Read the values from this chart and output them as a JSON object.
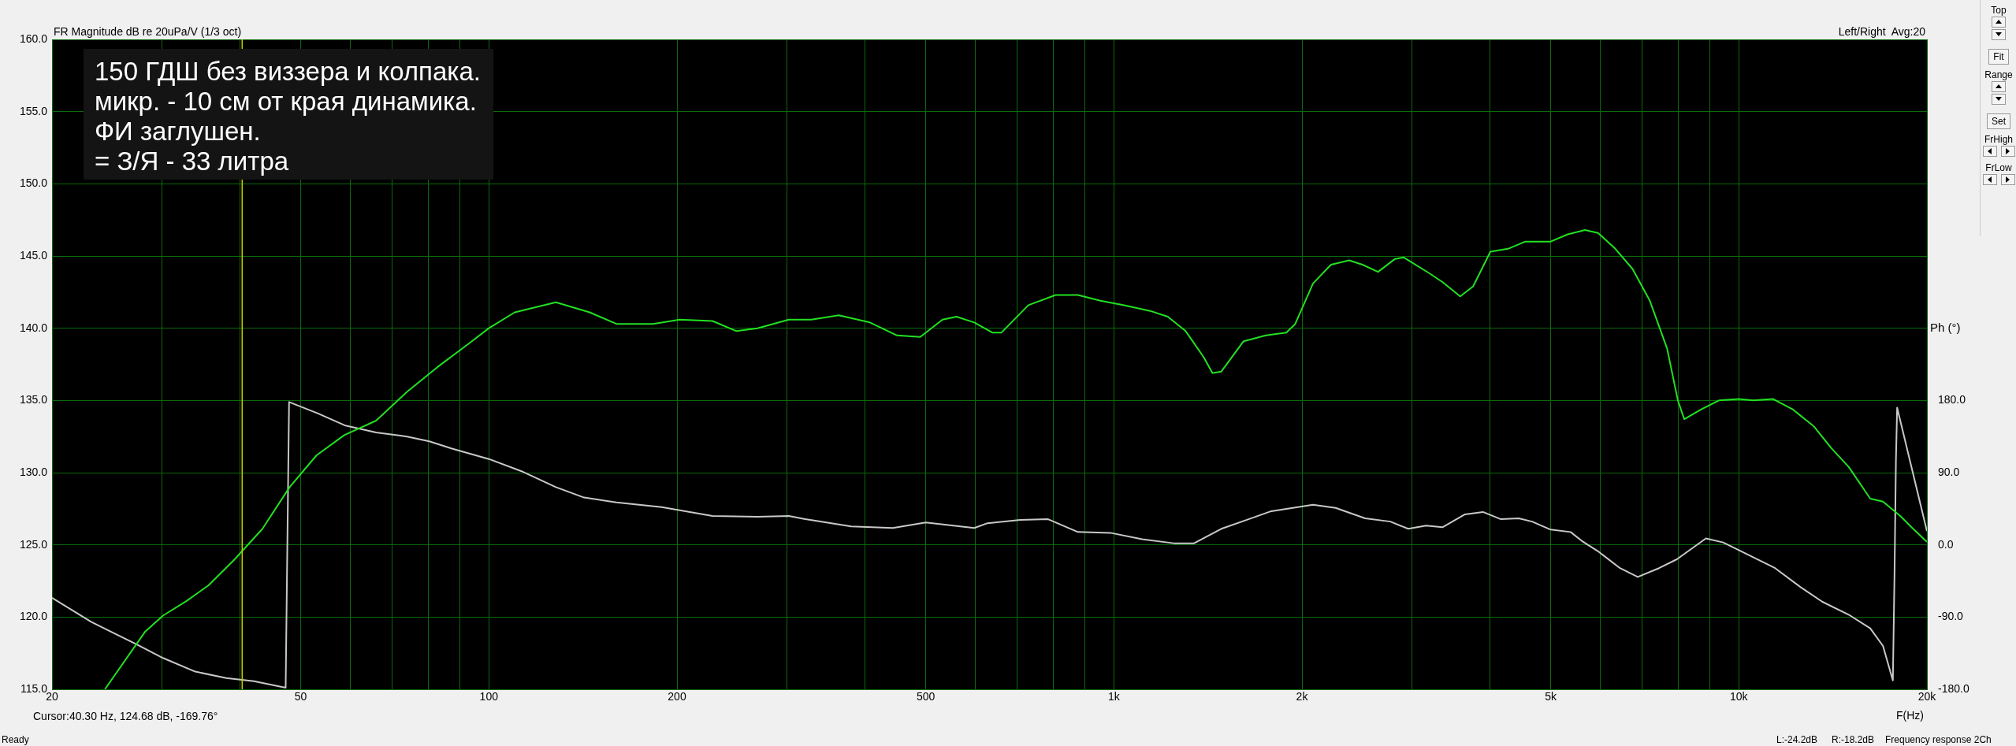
{
  "chart_data": {
    "type": "line",
    "title": "FR Magnitude dB re 20uPa/V (1/3 oct)",
    "xlabel": "F(Hz)",
    "y2label": "Ph (°)",
    "annotations": [
      "150 ГДШ без виззера и колпака.\nмикр. - 10 см от края динамика.\nФИ заглушен.\n= З/Я - 33 литра",
      "Left/Right  Avg:20",
      "Cursor:40.30 Hz, 124.68 dB, -169.76°",
      "Ready",
      "L:-24.2dB",
      "R:-18.2dB",
      "Frequency response 2Ch",
      "Top",
      "Fit",
      "Range",
      "Set",
      "FrHigh",
      "FrLow"
    ],
    "log": "x",
    "grid": true,
    "legend": false,
    "marker": "none",
    "line_style": "solid",
    "xlim": [
      20,
      20000
    ],
    "xticks": [
      20,
      {
        "value": 30,
        "label": null
      },
      {
        "value": 40,
        "label": null
      },
      50,
      {
        "value": 60,
        "label": null
      },
      {
        "value": 70,
        "label": null
      },
      {
        "value": 80,
        "label": null
      },
      {
        "value": 90,
        "label": null
      },
      100,
      200,
      {
        "value": 300,
        "label": null
      },
      {
        "value": 400,
        "label": null
      },
      500,
      {
        "value": 600,
        "label": null
      },
      {
        "value": 700,
        "label": null
      },
      {
        "value": 800,
        "label": null
      },
      {
        "value": 900,
        "label": null
      },
      {
        "value": 1000,
        "label": "1k"
      },
      {
        "value": 2000,
        "label": "2k"
      },
      {
        "value": 3000,
        "label": null
      },
      {
        "value": 4000,
        "label": null
      },
      {
        "value": 5000,
        "label": "5k"
      },
      {
        "value": 6000,
        "label": null
      },
      {
        "value": 7000,
        "label": null
      },
      {
        "value": 8000,
        "label": null
      },
      {
        "value": 9000,
        "label": null
      },
      {
        "value": 10000,
        "label": "10k"
      },
      {
        "value": 20000,
        "label": "20k"
      }
    ],
    "ylim": [
      115,
      160
    ],
    "yticks": [
      {
        "value": 115,
        "label": "115.0"
      },
      {
        "value": 120,
        "label": "120.0"
      },
      {
        "value": 125,
        "label": "125.0"
      },
      {
        "value": 130,
        "label": "130.0"
      },
      {
        "value": 135,
        "label": "135.0"
      },
      {
        "value": 140,
        "label": "140.0"
      },
      {
        "value": 145,
        "label": "145.0"
      },
      {
        "value": 150,
        "label": "150.0"
      },
      {
        "value": 155,
        "label": "155.0"
      },
      {
        "value": 160,
        "label": "160.0"
      }
    ],
    "y2lim": [
      -180,
      630
    ],
    "y2ticks": [
      {
        "value": -180,
        "label": "-180.0"
      },
      {
        "value": -90,
        "label": "-90.0"
      },
      {
        "value": 0,
        "label": "0.0"
      },
      {
        "value": 90,
        "label": "90.0"
      },
      {
        "value": 180,
        "label": "180.0"
      }
    ],
    "ref_lines": [
      {
        "axis": "x",
        "value": 40.3,
        "color": "#c8c800"
      }
    ],
    "series": [
      {
        "type": "line",
        "color": "#22e022",
        "x": [
          24.3,
          28.2,
          30.1,
          32.8,
          35.6,
          39.2,
          43.4,
          48,
          53,
          58.7,
          66,
          74,
          82.7,
          93.3,
          100,
          110,
          128,
          145,
          160,
          183,
          202,
          228,
          249,
          269,
          302,
          328,
          363,
          407,
          450,
          490,
          532,
          560,
          598,
          639,
          661,
          730,
          807,
          876,
          952,
          1035,
          1143,
          1220,
          1303,
          1392,
          1438,
          1486,
          1613,
          1751,
          1888,
          1951,
          2083,
          2226,
          2379,
          2500,
          2647,
          2818,
          2911,
          3199,
          3356,
          3583,
          3758,
          4004,
          4273,
          4554,
          5000,
          5323,
          5674,
          5954,
          6345,
          6762,
          7205,
          7678,
          7989,
          8180,
          8720,
          9294,
          10000,
          10555,
          11339,
          12180,
          13190,
          14060,
          14990,
          16230,
          17010,
          18130,
          19020,
          20000
        ],
        "values": [
          115,
          119,
          120.1,
          121.1,
          122.2,
          124,
          126.1,
          129,
          131.2,
          132.6,
          133.6,
          135.6,
          137.3,
          139,
          140,
          141.1,
          141.8,
          141.1,
          140.3,
          140.3,
          140.6,
          140.5,
          139.8,
          140,
          140.6,
          140.6,
          140.9,
          140.4,
          139.5,
          139.4,
          140.6,
          140.8,
          140.4,
          139.7,
          139.7,
          141.6,
          142.3,
          142.3,
          141.9,
          141.6,
          141.2,
          140.8,
          139.8,
          138,
          136.9,
          137,
          139.1,
          139.5,
          139.7,
          140.3,
          143.1,
          144.4,
          144.7,
          144.4,
          143.9,
          144.8,
          144.9,
          143.8,
          143.2,
          142.2,
          142.9,
          145.3,
          145.5,
          146,
          146,
          146.5,
          146.8,
          146.6,
          145.5,
          144.1,
          141.9,
          138.6,
          135,
          133.7,
          134.4,
          135,
          135.1,
          135,
          135.1,
          134.4,
          133.2,
          131.7,
          130.4,
          128.2,
          128,
          127,
          126.1,
          125.2
        ]
      },
      {
        "type": "line",
        "axis": "y2",
        "color": "#c8c8c8",
        "x": [
          20,
          23.1,
          25.1,
          27.3,
          30.1,
          33.9,
          38,
          42.1,
          47.3,
          47.9,
          53.2,
          58.8,
          66,
          74,
          80.3,
          87.3,
          100,
          112.6,
          128,
          142,
          160,
          189,
          228,
          269,
          302,
          321,
          380,
          443,
          500,
          598,
          628,
          708,
          785,
          876,
          987,
          1110,
          1247,
          1344,
          1486,
          1643,
          1786,
          2083,
          2264,
          2524,
          2770,
          2958,
          3160,
          3356,
          3647,
          3896,
          4162,
          4445,
          4669,
          5000,
          5381,
          5606,
          5954,
          6455,
          6891,
          7454,
          7958,
          8859,
          9442,
          10390,
          11430,
          12570,
          13610,
          14990,
          16230,
          17010,
          17640,
          17750,
          17840,
          17920,
          20000
        ],
        "values": [
          -66,
          -96,
          -110,
          -124,
          -141,
          -158,
          -166,
          -170,
          -178,
          178,
          164,
          149,
          140,
          135,
          129,
          120,
          107,
          92,
          72,
          59,
          53,
          47,
          36,
          35,
          36,
          32,
          23,
          21,
          28,
          21,
          27,
          31,
          32,
          16,
          15,
          7,
          2,
          2,
          20,
          32,
          42,
          50,
          46,
          33,
          29,
          20,
          24,
          22,
          38,
          41,
          32,
          33,
          29,
          19,
          16,
          5,
          -8,
          -29,
          -40,
          -29,
          -18,
          8,
          3,
          -13,
          -29,
          -53,
          -71,
          -87,
          -104,
          -126,
          -169,
          -34,
          105,
          171,
          17
        ]
      }
    ]
  }
}
